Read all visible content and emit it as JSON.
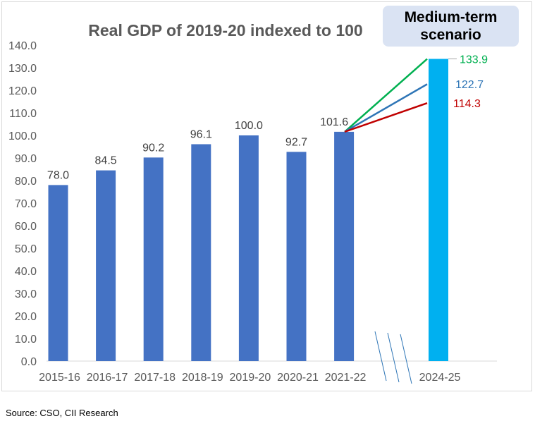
{
  "chart_data": {
    "type": "bar",
    "title": "Real GDP of 2019-20 indexed to 100",
    "categories": [
      "2015-16",
      "2016-17",
      "2017-18",
      "2018-19",
      "2019-20",
      "2020-21",
      "2021-22"
    ],
    "values": [
      78.0,
      84.5,
      90.2,
      96.1,
      100.0,
      92.7,
      101.6
    ],
    "value_labels": [
      "78.0",
      "84.5",
      "90.2",
      "96.1",
      "100.0",
      "92.7",
      "101.6"
    ],
    "projection": {
      "category": "2024-25",
      "bar_value": 133.9,
      "scenario_label": "Medium-term scenario",
      "scenarios": [
        {
          "value": 133.9,
          "label": "133.9",
          "color": "#00b050"
        },
        {
          "value": 122.7,
          "label": "122.7",
          "color": "#2e75b6"
        },
        {
          "value": 114.3,
          "label": "114.3",
          "color": "#c00000"
        }
      ]
    },
    "ylim": [
      0,
      140
    ],
    "yticks": [
      "0.0",
      "10.0",
      "20.0",
      "30.0",
      "40.0",
      "50.0",
      "60.0",
      "70.0",
      "80.0",
      "90.0",
      "100.0",
      "110.0",
      "120.0",
      "130.0",
      "140.0"
    ],
    "grid": false,
    "colors": {
      "bars": "#4472c4",
      "projection_bar": "#00b0f0"
    }
  },
  "source": "Source: CSO, CII Research"
}
